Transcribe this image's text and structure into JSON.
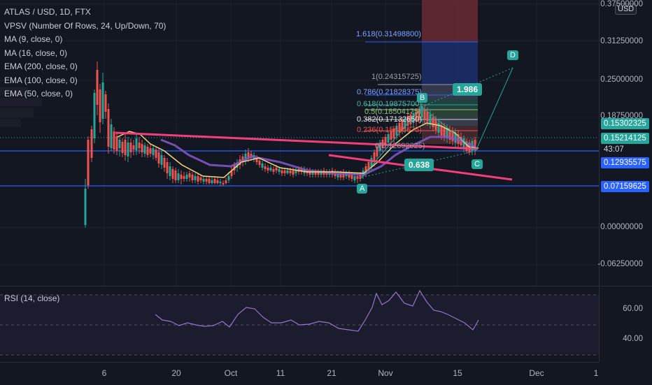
{
  "legend": {
    "symbol": "ATLAS / USD, 1D, FTX",
    "indicators": [
      "VPSV (Number Of Rows, 24, Up/Down, 70)",
      "MA (9, close, 0)",
      "MA (16, close, 0)",
      "EMA (200, close, 0)",
      "EMA (100, close, 0)",
      "EMA (50, close, 0)"
    ]
  },
  "price_axis": {
    "currency_button": "USD",
    "labels": [
      "0.37500000",
      "0.31250000",
      "0.25000000",
      "0.18750000",
      "0.00000000",
      "-0.06250000"
    ],
    "tags": {
      "last_price": "0.15302325",
      "current_price": "0.15214125",
      "countdown": "43:07",
      "upper_line": "0.12935575",
      "lower_line": "0.07159625"
    }
  },
  "rsi": {
    "legend": "RSI (14, close)",
    "labels": [
      "60.00",
      "40.00"
    ]
  },
  "time_axis": {
    "labels": [
      "6",
      "20",
      "Oct",
      "11",
      "21",
      "Nov",
      "15",
      "Dec",
      "1"
    ]
  },
  "fib": {
    "levels": [
      "1.618(0.31498800)",
      "1(0.24315725)",
      "0.786(0.21828375)",
      "0.618(0.19875700)",
      "0.5(0.18504175)",
      "0.382(0.17132650)",
      "0.236(0.15436675)",
      "0(0.12692625)"
    ]
  },
  "waves": {
    "a": "A",
    "b": "B",
    "c": "C",
    "d": "D"
  },
  "ratios": {
    "bc": "0.638",
    "cd": "1.986"
  },
  "colors": {
    "background": "#131722",
    "up": "#26a69a",
    "down": "#ef5350",
    "trendline": "#f23f7c",
    "hline": "#2962ff",
    "ma_yellow": "#f5d77a",
    "ema_purple": "#7e57c2"
  }
}
